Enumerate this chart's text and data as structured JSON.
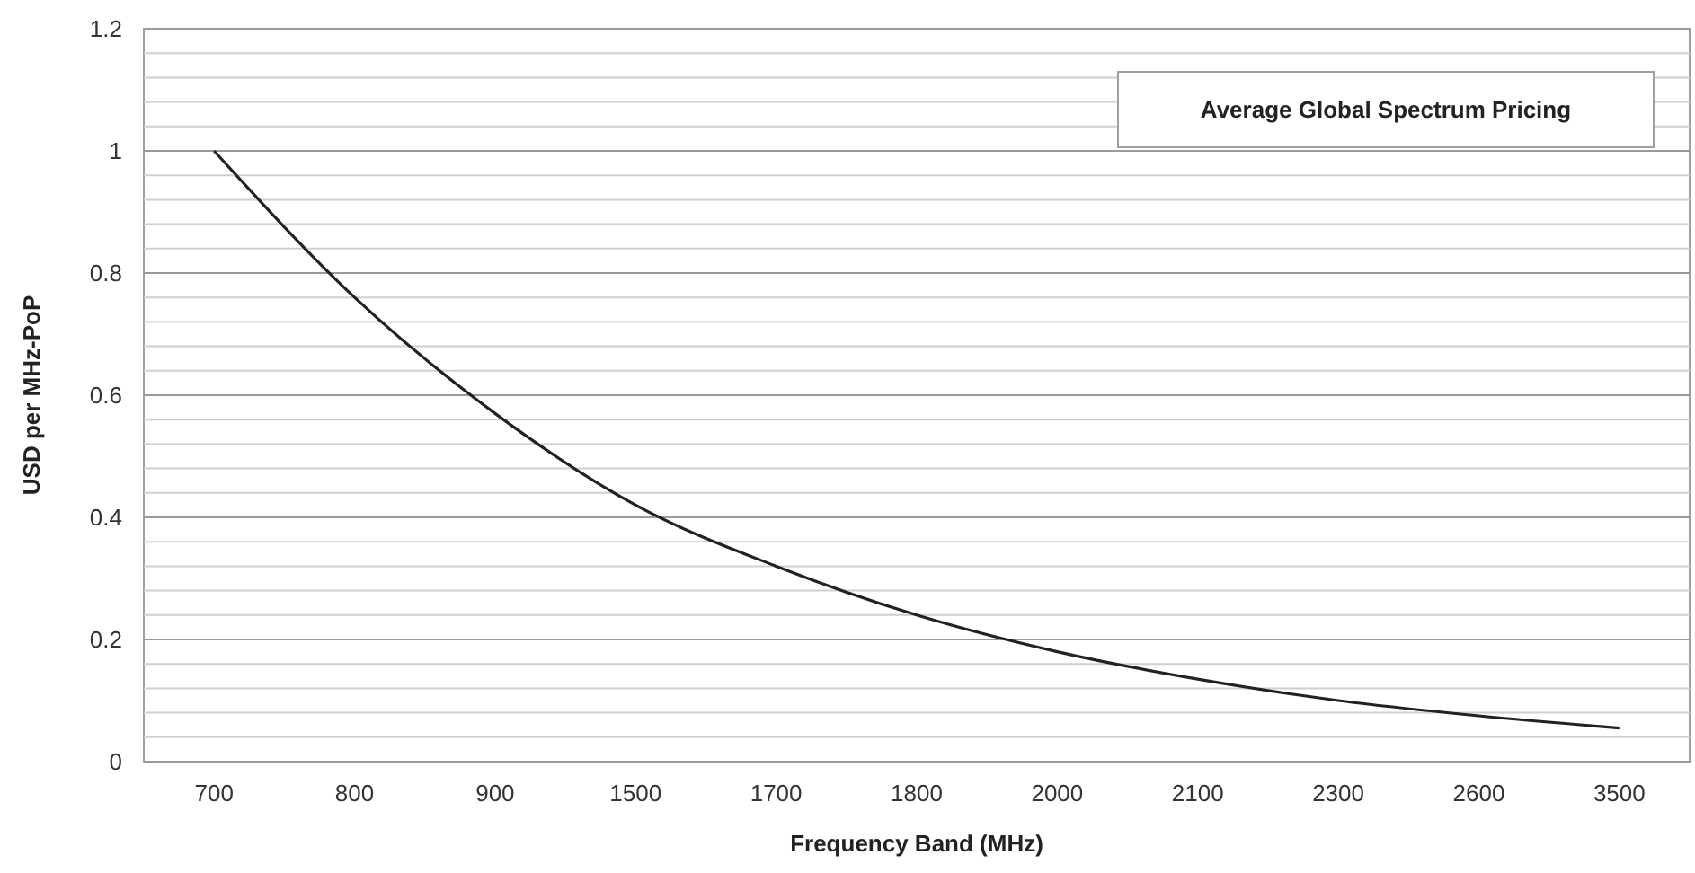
{
  "chart_data": {
    "type": "line",
    "title": "Average Global Spectrum Pricing",
    "xlabel": "Frequency Band (MHz)",
    "ylabel": "USD per MHz-PoP",
    "categories": [
      "700",
      "800",
      "900",
      "1500",
      "1700",
      "1800",
      "2000",
      "2100",
      "2300",
      "2600",
      "3500"
    ],
    "series": [
      {
        "color": "#222222",
        "values": [
          1.0,
          0.76,
          0.57,
          0.42,
          0.32,
          0.24,
          0.18,
          0.135,
          0.1,
          0.075,
          0.055
        ]
      }
    ],
    "ylim": [
      0,
      1.2
    ],
    "yticks": [
      0,
      {
        "value": 0.04,
        "label": null
      },
      {
        "value": 0.08,
        "label": null
      },
      {
        "value": 0.12,
        "label": null
      },
      {
        "value": 0.16,
        "label": null
      },
      {
        "value": 0.2,
        "label": "0.2"
      },
      {
        "value": 0.24,
        "label": null
      },
      {
        "value": 0.28,
        "label": null
      },
      {
        "value": 0.32,
        "label": null
      },
      {
        "value": 0.36,
        "label": null
      },
      {
        "value": 0.4,
        "label": "0.4"
      },
      {
        "value": 0.44,
        "label": null
      },
      {
        "value": 0.48,
        "label": null
      },
      {
        "value": 0.52,
        "label": null
      },
      {
        "value": 0.56,
        "label": null
      },
      {
        "value": 0.6,
        "label": "0.6"
      },
      {
        "value": 0.64,
        "label": null
      },
      {
        "value": 0.68,
        "label": null
      },
      {
        "value": 0.72,
        "label": null
      },
      {
        "value": 0.76,
        "label": null
      },
      {
        "value": 0.8,
        "label": "0.8"
      },
      {
        "value": 0.84,
        "label": null
      },
      {
        "value": 0.88,
        "label": null
      },
      {
        "value": 0.92,
        "label": null
      },
      {
        "value": 0.96,
        "label": null
      },
      1,
      {
        "value": 1.04,
        "label": null
      },
      {
        "value": 1.08,
        "label": null
      },
      {
        "value": 1.12,
        "label": null
      },
      {
        "value": 1.16,
        "label": null
      },
      {
        "value": 1.2,
        "label": "1.2"
      }
    ],
    "grid": "y",
    "marker": "none",
    "line_style": "solid"
  }
}
